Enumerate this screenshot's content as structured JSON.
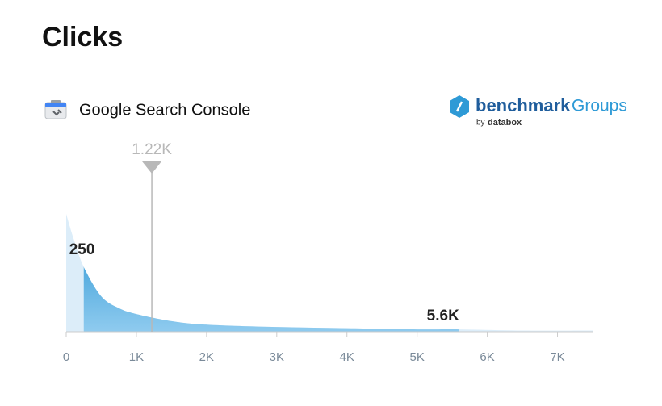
{
  "chart_data": {
    "type": "density",
    "title": "Clicks",
    "source": "Google Search Console",
    "brand": {
      "name": "benchmark",
      "product": "Groups",
      "by": "by",
      "company": "databox"
    },
    "x": [
      0,
      100,
      250,
      500,
      750,
      1000,
      1500,
      2000,
      3000,
      4000,
      5000,
      5600,
      6500,
      7500
    ],
    "values": [
      100,
      80,
      55,
      30,
      20,
      15,
      9,
      6,
      4,
      3,
      2,
      2,
      1,
      1
    ],
    "xlim": [
      0,
      7500
    ],
    "ylim": [
      0,
      100
    ],
    "xticks": [
      0,
      {
        "value": 1000,
        "label": "1K"
      },
      {
        "value": 2000,
        "label": "2K"
      },
      {
        "value": 3000,
        "label": "3K"
      },
      {
        "value": 4000,
        "label": "4K"
      },
      {
        "value": 5000,
        "label": "5K"
      },
      {
        "value": 6000,
        "label": "6K"
      },
      {
        "value": 7000,
        "label": "7K"
      }
    ],
    "low": {
      "value": 250,
      "label": "250"
    },
    "high": {
      "value": 5600,
      "label": "5.6K"
    },
    "median": {
      "value": 1220,
      "label": "1.22K"
    },
    "color": "#2e9ad6",
    "light_color": "#dcedf9"
  }
}
